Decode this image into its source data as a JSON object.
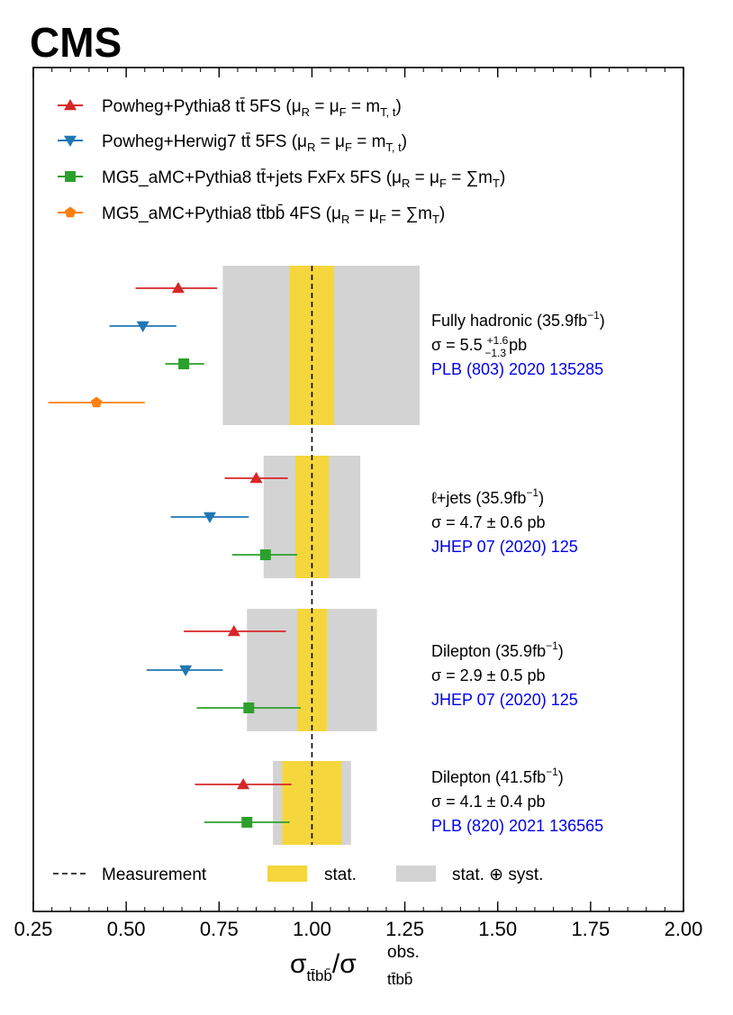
{
  "experiment_label": "CMS",
  "colors": {
    "powheg_pythia8": "#d62728",
    "powheg_herwig7": "#1f77b4",
    "mg5_fxfx": "#2ca02c",
    "mg5_ttbb": "#ff7f0e",
    "stat_band": "#f5d63d",
    "syst_band": "#d3d3d3",
    "reference_link": "#0000ee"
  },
  "chart_data": {
    "type": "scatter",
    "orientation": "horizontal",
    "xlim": [
      0.25,
      2.0
    ],
    "xticks": [
      "0.25",
      "0.50",
      "0.75",
      "1.00",
      "1.25",
      "1.50",
      "1.75",
      "2.00"
    ],
    "xlabel": {
      "main": "σ",
      "num_sub": "tt̄bb̄",
      "sep": "/",
      "den_sub": "tt̄bb̄",
      "den_sup": "obs."
    },
    "grid": false,
    "legend_position": "top-left",
    "series": [
      {
        "key": "powheg_pythia8",
        "marker": "triangle-up",
        "label_main": "Powheg+Pythia8 tt̄ 5FS (μ",
        "label_tail": "R = μF = mT, t)"
      },
      {
        "key": "powheg_herwig7",
        "marker": "triangle-down",
        "label_main": "Powheg+Herwig7 tt̄ 5FS (μ",
        "label_tail": "R = μF = mT, t)"
      },
      {
        "key": "mg5_fxfx",
        "marker": "square",
        "label_main": "MG5_aMC+Pythia8 tt̄+jets FxFx 5FS (μ",
        "label_tail": "R = μF = ∑mT)"
      },
      {
        "key": "mg5_ttbb",
        "marker": "pentagon",
        "label_main": "MG5_aMC+Pythia8 tt̄bb̄ 4FS (μ",
        "label_tail": "R = μF = ∑mT)"
      }
    ],
    "measurements": [
      {
        "title": "Fully hadronic (35.9fb",
        "title_sup": "−1",
        "title_end": ")",
        "xsec_text": "σ = 5.5",
        "xsec_up": "+1.6",
        "xsec_down": "−1.3",
        "xsec_unit": "pb",
        "reference": "PLB (803) 2020 135285",
        "stat": [
          0.94,
          1.06
        ],
        "total": [
          0.76,
          1.29
        ],
        "predictions": [
          {
            "series": "powheg_pythia8",
            "value": 0.64,
            "err": [
              0.525,
              0.745
            ]
          },
          {
            "series": "powheg_herwig7",
            "value": 0.545,
            "err": [
              0.455,
              0.635
            ]
          },
          {
            "series": "mg5_fxfx",
            "value": 0.655,
            "err": [
              0.605,
              0.71
            ]
          },
          {
            "series": "mg5_ttbb",
            "value": 0.42,
            "err": [
              0.29,
              0.55
            ]
          }
        ]
      },
      {
        "title": "ℓ+jets (35.9fb",
        "title_sup": "−1",
        "title_end": ")",
        "xsec_text": "σ = 4.7 ± 0.6 pb",
        "reference": "JHEP 07 (2020) 125",
        "stat": [
          0.955,
          1.045
        ],
        "total": [
          0.87,
          1.13
        ],
        "predictions": [
          {
            "series": "powheg_pythia8",
            "value": 0.85,
            "err": [
              0.765,
              0.935
            ]
          },
          {
            "series": "powheg_herwig7",
            "value": 0.725,
            "err": [
              0.62,
              0.83
            ]
          },
          {
            "series": "mg5_fxfx",
            "value": 0.875,
            "err": [
              0.785,
              0.96
            ]
          }
        ]
      },
      {
        "title": "Dilepton (35.9fb",
        "title_sup": "−1",
        "title_end": ")",
        "xsec_text": "σ = 2.9 ± 0.5 pb",
        "reference": "JHEP 07 (2020) 125",
        "stat": [
          0.96,
          1.04
        ],
        "total": [
          0.825,
          1.175
        ],
        "predictions": [
          {
            "series": "powheg_pythia8",
            "value": 0.79,
            "err": [
              0.655,
              0.93
            ]
          },
          {
            "series": "powheg_herwig7",
            "value": 0.66,
            "err": [
              0.555,
              0.76
            ]
          },
          {
            "series": "mg5_fxfx",
            "value": 0.83,
            "err": [
              0.69,
              0.97
            ]
          }
        ]
      },
      {
        "title": "Dilepton (41.5fb",
        "title_sup": "−1",
        "title_end": ")",
        "xsec_text": "σ = 4.1 ± 0.4 pb",
        "reference": "PLB (820) 2021 136565",
        "stat": [
          0.92,
          1.08
        ],
        "total": [
          0.895,
          1.105
        ],
        "predictions": [
          {
            "series": "powheg_pythia8",
            "value": 0.815,
            "err": [
              0.685,
              0.945
            ]
          },
          {
            "series": "mg5_fxfx",
            "value": 0.825,
            "err": [
              0.71,
              0.94
            ]
          }
        ]
      }
    ],
    "bottom_legend": {
      "measurement": "Measurement",
      "stat": "stat.",
      "stat_syst": "stat. ⊕ syst."
    }
  }
}
